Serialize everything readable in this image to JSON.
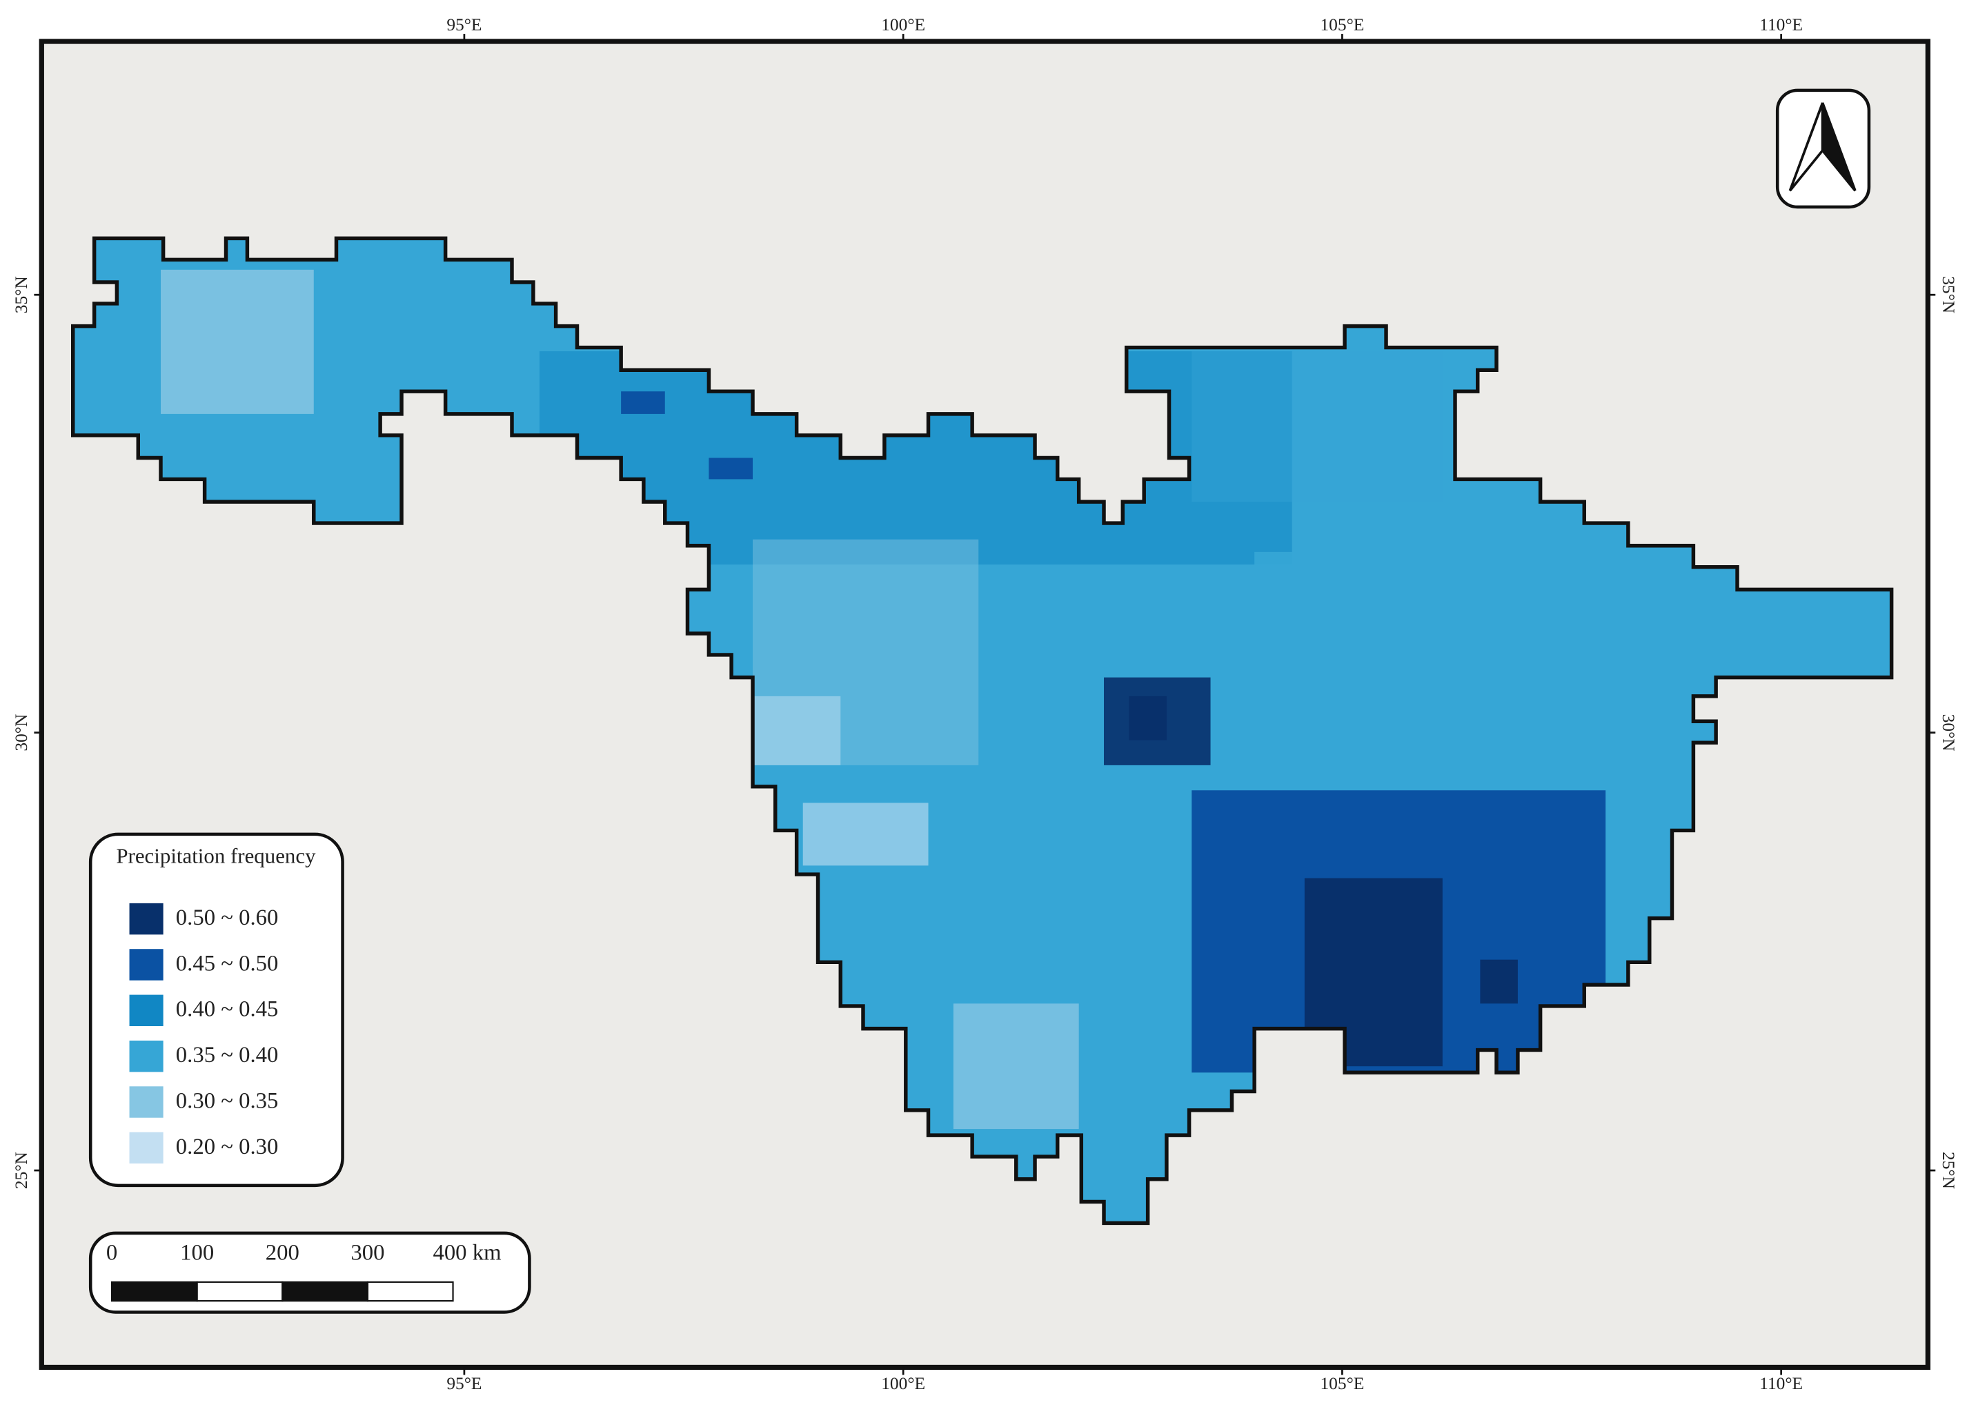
{
  "map": {
    "lon_ticks": [
      {
        "value": 95,
        "label": "95°E"
      },
      {
        "value": 100,
        "label": "100°E"
      },
      {
        "value": 105,
        "label": "105°E"
      },
      {
        "value": 110,
        "label": "110°E"
      }
    ],
    "lat_ticks": [
      {
        "value": 35,
        "label": "35°N"
      },
      {
        "value": 30,
        "label": "30°N"
      },
      {
        "value": 25,
        "label": "25°N"
      }
    ],
    "legend": {
      "title": "Precipitation frequency",
      "items": [
        {
          "label": "0.50 ~ 0.60",
          "color": "#08306b"
        },
        {
          "label": "0.45 ~ 0.50",
          "color": "#0b52a3"
        },
        {
          "label": "0.40 ~ 0.45",
          "color": "#1187c4"
        },
        {
          "label": "0.35 ~ 0.40",
          "color": "#36a6d6"
        },
        {
          "label": "0.30 ~ 0.35",
          "color": "#86c6e3"
        },
        {
          "label": "0.20 ~ 0.30",
          "color": "#c3dff2"
        }
      ]
    },
    "scale_bar": {
      "labels": [
        0,
        100,
        200,
        300,
        {
          "value": 400,
          "label": "400 km"
        }
      ]
    }
  }
}
